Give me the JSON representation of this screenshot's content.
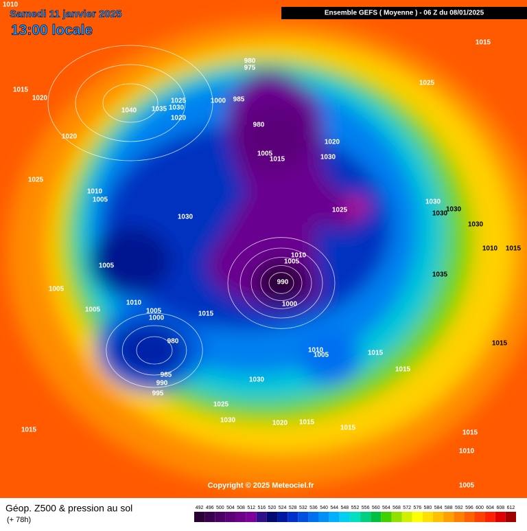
{
  "header": {
    "date": "Samedi 11 janvier 2025",
    "time": "13:00 locale",
    "run": "Ensemble GEFS  ( Moyenne )  -  06 Z du 08/01/2025"
  },
  "copyright": "Copyright © 2025 Meteociel.fr",
  "footer": {
    "title": "Géop. Z500 & pression au sol",
    "lead": "(+ 78h)"
  },
  "isobar_labels": [
    1010,
    1015,
    1020,
    1040,
    1035,
    1030,
    1025,
    1020,
    1020,
    1025,
    1010,
    1005,
    1030,
    1005,
    1005,
    1005,
    1010,
    1005,
    1000,
    1015,
    980,
    985,
    990,
    995,
    1030,
    1025,
    1030,
    1015,
    980,
    975,
    1000,
    985,
    980,
    1005,
    1015,
    1020,
    1030,
    1025,
    1025,
    1015,
    1030,
    1030,
    1030,
    1030,
    1010,
    1015,
    1010,
    1005,
    990,
    1000,
    1035,
    1015,
    1010,
    1005,
    1015,
    1015,
    1020,
    1015,
    1015,
    1015,
    1010,
    1005
  ],
  "colorbar": {
    "levels": [
      492,
      496,
      500,
      504,
      508,
      512,
      516,
      520,
      524,
      528,
      532,
      536,
      540,
      544,
      548,
      552,
      556,
      560,
      564,
      568,
      572,
      576,
      580,
      584,
      588,
      592,
      596,
      600,
      604,
      608,
      612
    ],
    "colors": [
      "#2a0035",
      "#3a0050",
      "#4b0065",
      "#5c0078",
      "#6e0088",
      "#7b0099",
      "#30108a",
      "#000a70",
      "#0018a0",
      "#0030c8",
      "#0050e0",
      "#0070f0",
      "#0090f8",
      "#00b0ff",
      "#00d0f0",
      "#00e0c0",
      "#00d080",
      "#00c040",
      "#40d000",
      "#90e000",
      "#d0f000",
      "#ffff00",
      "#ffe000",
      "#ffc000",
      "#ffa000",
      "#ff8000",
      "#ff6000",
      "#ff4000",
      "#ff2000",
      "#e00000",
      "#a00000"
    ]
  }
}
